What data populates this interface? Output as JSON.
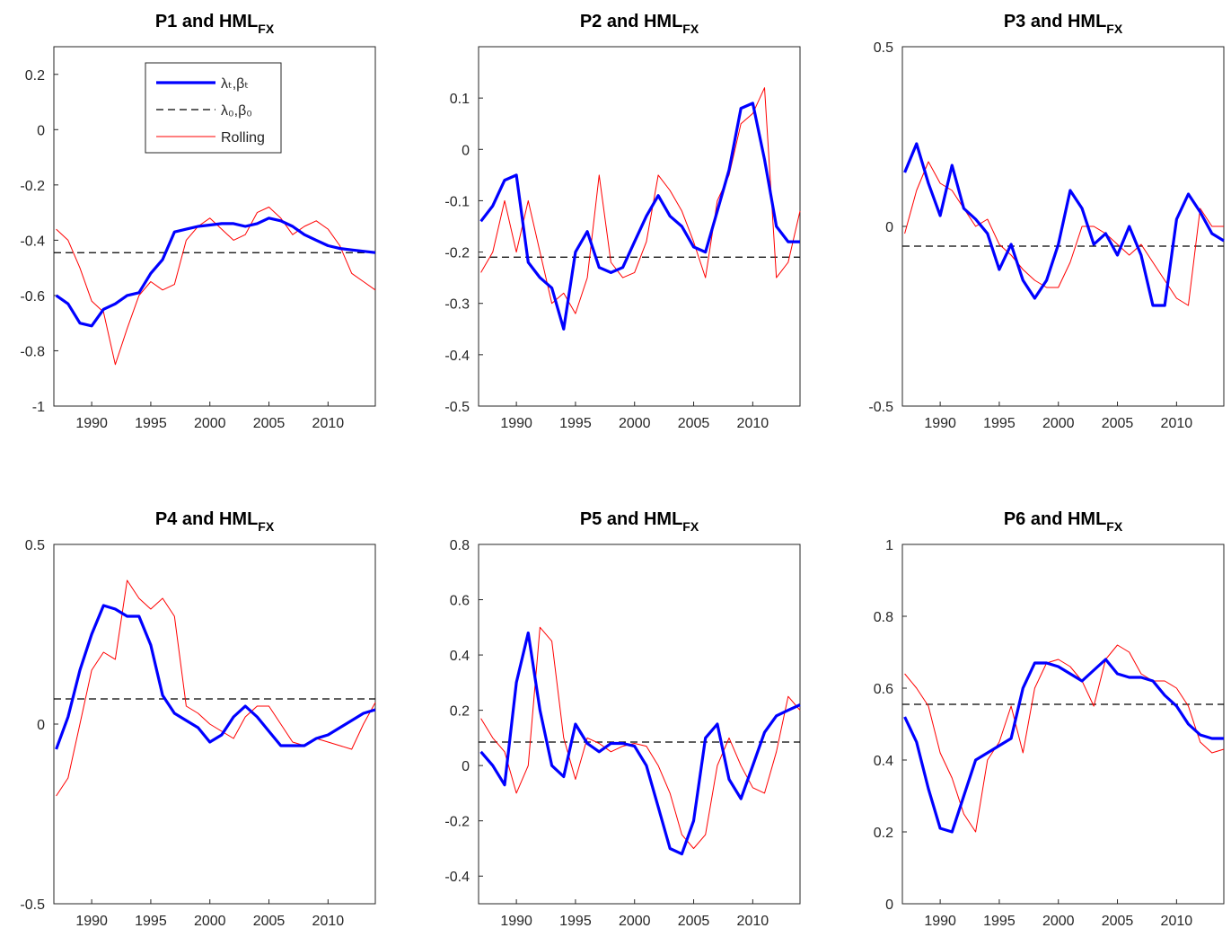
{
  "chart_data": [
    {
      "type": "line",
      "title": "P1 and HML",
      "title_subscript": "FX",
      "legend": "upper center",
      "x": [
        1987,
        1988,
        1989,
        1990,
        1991,
        1992,
        1993,
        1994,
        1995,
        1996,
        1997,
        1998,
        1999,
        2000,
        2001,
        2002,
        2003,
        2004,
        2005,
        2006,
        2007,
        2008,
        2009,
        2010,
        2011,
        2012,
        2013,
        2014
      ],
      "xlim": [
        1986.8,
        2014
      ],
      "xticks": [
        1990,
        1995,
        2000,
        2005,
        2010
      ],
      "ylim": [
        -1,
        0.3
      ],
      "yticks": [
        -1,
        -0.8,
        -0.6,
        -0.4,
        -0.2,
        0,
        0.2
      ],
      "series": [
        {
          "name": "λₜ,βₜ",
          "color": "#0000ff",
          "values": [
            -0.6,
            -0.63,
            -0.7,
            -0.71,
            -0.65,
            -0.63,
            -0.6,
            -0.59,
            -0.52,
            -0.47,
            -0.37,
            -0.36,
            -0.35,
            -0.345,
            -0.34,
            -0.34,
            -0.35,
            -0.34,
            -0.32,
            -0.33,
            -0.35,
            -0.38,
            -0.4,
            -0.42,
            -0.43,
            -0.435,
            -0.44,
            -0.445
          ]
        },
        {
          "name": "Rolling",
          "color": "#ff0000",
          "values": [
            -0.36,
            -0.4,
            -0.5,
            -0.62,
            -0.66,
            -0.85,
            -0.72,
            -0.6,
            -0.55,
            -0.58,
            -0.56,
            -0.4,
            -0.35,
            -0.32,
            -0.36,
            -0.4,
            -0.38,
            -0.3,
            -0.28,
            -0.32,
            -0.38,
            -0.35,
            -0.33,
            -0.36,
            -0.42,
            -0.52,
            -0.55,
            -0.58
          ]
        }
      ],
      "hlines": [
        {
          "name": "λ₀,β₀",
          "color": "#000000",
          "value": -0.445
        }
      ]
    },
    {
      "type": "line",
      "title": "P2 and HML",
      "title_subscript": "FX",
      "x": [
        1987,
        1988,
        1989,
        1990,
        1991,
        1992,
        1993,
        1994,
        1995,
        1996,
        1997,
        1998,
        1999,
        2000,
        2001,
        2002,
        2003,
        2004,
        2005,
        2006,
        2007,
        2008,
        2009,
        2010,
        2011,
        2012,
        2013,
        2014
      ],
      "xlim": [
        1986.8,
        2014
      ],
      "xticks": [
        1990,
        1995,
        2000,
        2005,
        2010
      ],
      "ylim": [
        -0.5,
        0.2
      ],
      "yticks": [
        -0.5,
        -0.4,
        -0.3,
        -0.2,
        -0.1,
        0,
        0.1
      ],
      "series": [
        {
          "color": "#0000ff",
          "values": [
            -0.14,
            -0.11,
            -0.06,
            -0.05,
            -0.22,
            -0.25,
            -0.27,
            -0.35,
            -0.2,
            -0.16,
            -0.23,
            -0.24,
            -0.23,
            -0.18,
            -0.13,
            -0.09,
            -0.13,
            -0.15,
            -0.19,
            -0.2,
            -0.12,
            -0.04,
            0.08,
            0.09,
            -0.02,
            -0.15,
            -0.18,
            -0.18
          ]
        },
        {
          "color": "#ff0000",
          "values": [
            -0.24,
            -0.2,
            -0.1,
            -0.2,
            -0.1,
            -0.2,
            -0.3,
            -0.28,
            -0.32,
            -0.25,
            -0.05,
            -0.22,
            -0.25,
            -0.24,
            -0.18,
            -0.05,
            -0.08,
            -0.12,
            -0.18,
            -0.25,
            -0.1,
            -0.05,
            0.05,
            0.07,
            0.12,
            -0.25,
            -0.22,
            -0.12
          ]
        }
      ],
      "hlines": [
        {
          "color": "#000000",
          "value": -0.21
        }
      ]
    },
    {
      "type": "line",
      "title": "P3 and HML",
      "title_subscript": "FX",
      "x": [
        1987,
        1988,
        1989,
        1990,
        1991,
        1992,
        1993,
        1994,
        1995,
        1996,
        1997,
        1998,
        1999,
        2000,
        2001,
        2002,
        2003,
        2004,
        2005,
        2006,
        2007,
        2008,
        2009,
        2010,
        2011,
        2012,
        2013,
        2014
      ],
      "xlim": [
        1986.8,
        2014
      ],
      "xticks": [
        1990,
        1995,
        2000,
        2005,
        2010
      ],
      "ylim": [
        -0.5,
        0.5
      ],
      "yticks": [
        -0.5,
        0,
        0.5
      ],
      "series": [
        {
          "color": "#0000ff",
          "values": [
            0.15,
            0.23,
            0.12,
            0.03,
            0.17,
            0.05,
            0.02,
            -0.02,
            -0.12,
            -0.05,
            -0.15,
            -0.2,
            -0.15,
            -0.05,
            0.1,
            0.05,
            -0.05,
            -0.02,
            -0.08,
            0.0,
            -0.08,
            -0.22,
            -0.22,
            0.02,
            0.09,
            0.04,
            -0.02,
            -0.04
          ]
        },
        {
          "color": "#ff0000",
          "values": [
            -0.02,
            0.1,
            0.18,
            0.12,
            0.1,
            0.05,
            0.0,
            0.02,
            -0.05,
            -0.08,
            -0.12,
            -0.15,
            -0.17,
            -0.17,
            -0.1,
            0.0,
            0.0,
            -0.02,
            -0.05,
            -0.08,
            -0.05,
            -0.1,
            -0.15,
            -0.2,
            -0.22,
            0.05,
            0.0,
            0.0
          ]
        }
      ],
      "hlines": [
        {
          "color": "#000000",
          "value": -0.055
        }
      ]
    },
    {
      "type": "line",
      "title": "P4 and HML",
      "title_subscript": "FX",
      "x": [
        1987,
        1988,
        1989,
        1990,
        1991,
        1992,
        1993,
        1994,
        1995,
        1996,
        1997,
        1998,
        1999,
        2000,
        2001,
        2002,
        2003,
        2004,
        2005,
        2006,
        2007,
        2008,
        2009,
        2010,
        2011,
        2012,
        2013,
        2014
      ],
      "xlim": [
        1986.8,
        2014
      ],
      "xticks": [
        1990,
        1995,
        2000,
        2005,
        2010
      ],
      "ylim": [
        -0.5,
        0.5
      ],
      "yticks": [
        -0.5,
        0,
        0.5
      ],
      "series": [
        {
          "color": "#0000ff",
          "values": [
            -0.07,
            0.02,
            0.15,
            0.25,
            0.33,
            0.32,
            0.3,
            0.3,
            0.22,
            0.08,
            0.03,
            0.01,
            -0.01,
            -0.05,
            -0.03,
            0.02,
            0.05,
            0.02,
            -0.02,
            -0.06,
            -0.06,
            -0.06,
            -0.04,
            -0.03,
            -0.01,
            0.01,
            0.03,
            0.04
          ]
        },
        {
          "color": "#ff0000",
          "values": [
            -0.2,
            -0.15,
            0.0,
            0.15,
            0.2,
            0.18,
            0.4,
            0.35,
            0.32,
            0.35,
            0.3,
            0.05,
            0.03,
            0.0,
            -0.02,
            -0.04,
            0.02,
            0.05,
            0.05,
            0.0,
            -0.05,
            -0.06,
            -0.04,
            -0.05,
            -0.06,
            -0.07,
            0.0,
            0.06
          ]
        }
      ],
      "hlines": [
        {
          "color": "#000000",
          "value": 0.07
        }
      ]
    },
    {
      "type": "line",
      "title": "P5 and HML",
      "title_subscript": "FX",
      "x": [
        1987,
        1988,
        1989,
        1990,
        1991,
        1992,
        1993,
        1994,
        1995,
        1996,
        1997,
        1998,
        1999,
        2000,
        2001,
        2002,
        2003,
        2004,
        2005,
        2006,
        2007,
        2008,
        2009,
        2010,
        2011,
        2012,
        2013,
        2014
      ],
      "xlim": [
        1986.8,
        2014
      ],
      "xticks": [
        1990,
        1995,
        2000,
        2005,
        2010
      ],
      "ylim": [
        -0.5,
        0.8
      ],
      "yticks": [
        -0.4,
        -0.2,
        0,
        0.2,
        0.4,
        0.6,
        0.8
      ],
      "series": [
        {
          "color": "#0000ff",
          "values": [
            0.05,
            0.0,
            -0.07,
            0.3,
            0.48,
            0.2,
            0.0,
            -0.04,
            0.15,
            0.08,
            0.05,
            0.08,
            0.08,
            0.07,
            0.0,
            -0.15,
            -0.3,
            -0.32,
            -0.2,
            0.1,
            0.15,
            -0.05,
            -0.12,
            0.0,
            0.12,
            0.18,
            0.2,
            0.22
          ]
        },
        {
          "color": "#ff0000",
          "values": [
            0.17,
            0.1,
            0.05,
            -0.1,
            0.0,
            0.5,
            0.45,
            0.1,
            -0.05,
            0.1,
            0.08,
            0.05,
            0.07,
            0.08,
            0.07,
            0.0,
            -0.1,
            -0.25,
            -0.3,
            -0.25,
            0.0,
            0.1,
            0.0,
            -0.08,
            -0.1,
            0.05,
            0.25,
            0.2
          ]
        }
      ],
      "hlines": [
        {
          "color": "#000000",
          "value": 0.085
        }
      ]
    },
    {
      "type": "line",
      "title": "P6 and HML",
      "title_subscript": "FX",
      "x": [
        1987,
        1988,
        1989,
        1990,
        1991,
        1992,
        1993,
        1994,
        1995,
        1996,
        1997,
        1998,
        1999,
        2000,
        2001,
        2002,
        2003,
        2004,
        2005,
        2006,
        2007,
        2008,
        2009,
        2010,
        2011,
        2012,
        2013,
        2014
      ],
      "xlim": [
        1986.8,
        2014
      ],
      "xticks": [
        1990,
        1995,
        2000,
        2005,
        2010
      ],
      "ylim": [
        0,
        1
      ],
      "yticks": [
        0,
        0.2,
        0.4,
        0.6,
        0.8,
        1
      ],
      "series": [
        {
          "color": "#0000ff",
          "values": [
            0.52,
            0.45,
            0.32,
            0.21,
            0.2,
            0.3,
            0.4,
            0.42,
            0.44,
            0.46,
            0.6,
            0.67,
            0.67,
            0.66,
            0.64,
            0.62,
            0.65,
            0.68,
            0.64,
            0.63,
            0.63,
            0.62,
            0.58,
            0.55,
            0.5,
            0.47,
            0.46,
            0.46
          ]
        },
        {
          "color": "#ff0000",
          "values": [
            0.64,
            0.6,
            0.55,
            0.42,
            0.35,
            0.25,
            0.2,
            0.4,
            0.45,
            0.55,
            0.42,
            0.6,
            0.67,
            0.68,
            0.66,
            0.62,
            0.55,
            0.68,
            0.72,
            0.7,
            0.64,
            0.62,
            0.62,
            0.6,
            0.55,
            0.45,
            0.42,
            0.43
          ]
        }
      ],
      "hlines": [
        {
          "color": "#000000",
          "value": 0.555
        }
      ]
    }
  ]
}
